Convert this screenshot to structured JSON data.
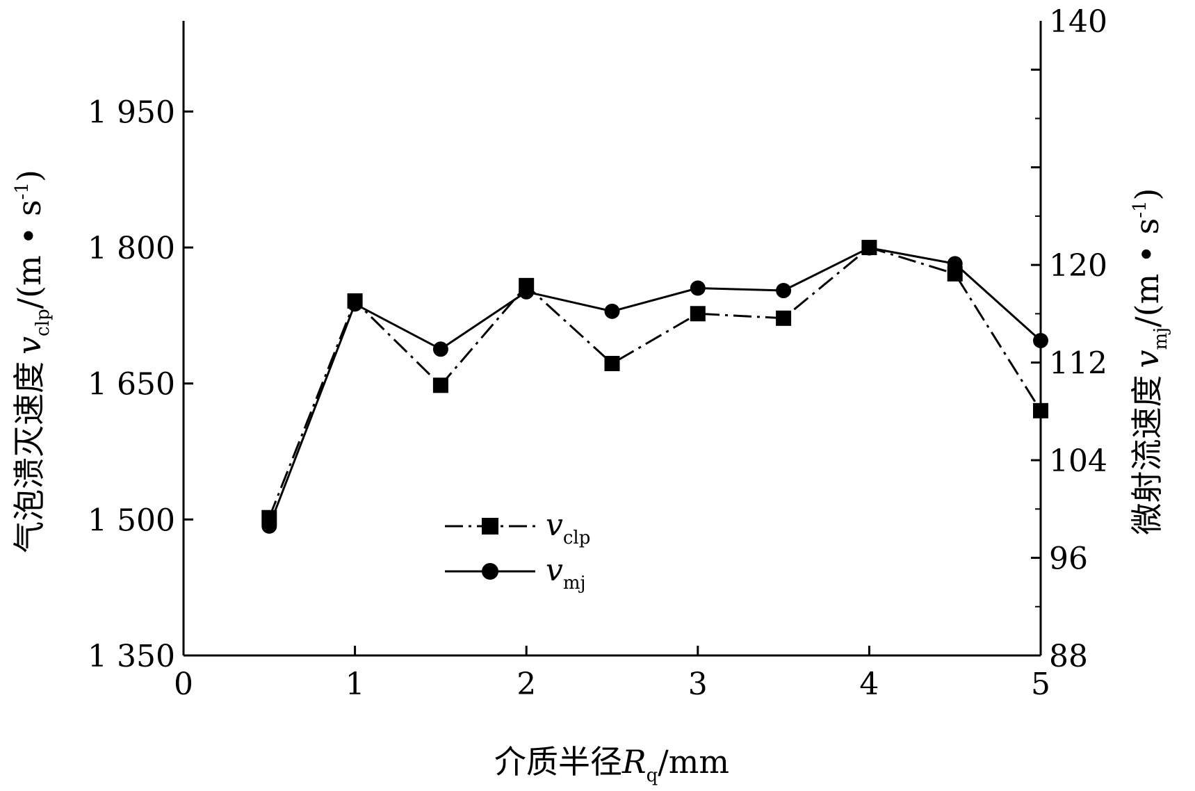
{
  "chart_data": {
    "type": "line",
    "x": [
      0.5,
      1,
      1.5,
      2,
      2.5,
      3,
      3.5,
      4,
      4.5,
      5
    ],
    "xlim": [
      0,
      5
    ],
    "x_ticks": [
      0,
      1,
      2,
      3,
      4,
      5
    ],
    "x_tick_labels": [
      "0",
      "1",
      "2",
      "3",
      "4",
      "5"
    ],
    "xlabel": "介质半径R_q/mm",
    "xlabel_main": "介质半径",
    "xlabel_sym": "R",
    "xlabel_sub": "q",
    "xlabel_tail": "/mm",
    "ylim_left": [
      1350,
      2050
    ],
    "y_left_ticks": [
      1350,
      1500,
      1650,
      1800,
      1950
    ],
    "y_left_tick_labels": [
      "1 350",
      "1 500",
      "1 650",
      "1 800",
      "1 950"
    ],
    "ylabel_left": "气泡溃灭速度 v_clp/(m·s-1)",
    "ylabel_left_main": "气泡溃灭速度",
    "ylabel_left_sym": "v",
    "ylabel_left_sub": "clp",
    "ylabel_left_tail": "/(m • s",
    "ylabel_left_sup": "-1",
    "ylabel_left_close": ")",
    "ylim_right": [
      88,
      140
    ],
    "y_right_ticks": [
      88,
      96,
      104,
      112,
      120,
      140
    ],
    "y_right_tick_labels": [
      "88",
      "96",
      "104",
      "112",
      "120",
      "140"
    ],
    "ylabel_right": "微射流速度 v_mj/(m·s-1)",
    "ylabel_right_main": "微射流速度",
    "ylabel_right_sym": "v",
    "ylabel_right_sub": "mj",
    "ylabel_right_tail": "/(m • s",
    "ylabel_right_sup": "-1",
    "ylabel_right_close": ")",
    "series": [
      {
        "name": "v_clp",
        "legend_sym": "v",
        "legend_sub": "clp",
        "axis": "left",
        "marker": "square",
        "line_style": "dash-dot",
        "values": [
          1502,
          1741,
          1648,
          1758,
          1672,
          1727,
          1722,
          1800,
          1771,
          1620
        ]
      },
      {
        "name": "v_mj",
        "legend_sym": "v",
        "legend_sub": "mj",
        "axis": "right",
        "marker": "circle",
        "line_style": "solid",
        "values": [
          98.6,
          116.8,
          113.1,
          117.8,
          116.2,
          118.1,
          117.9,
          121.4,
          120.1,
          113.8
        ]
      }
    ],
    "legend_position": "center-left",
    "grid": false,
    "color": "#000000"
  }
}
